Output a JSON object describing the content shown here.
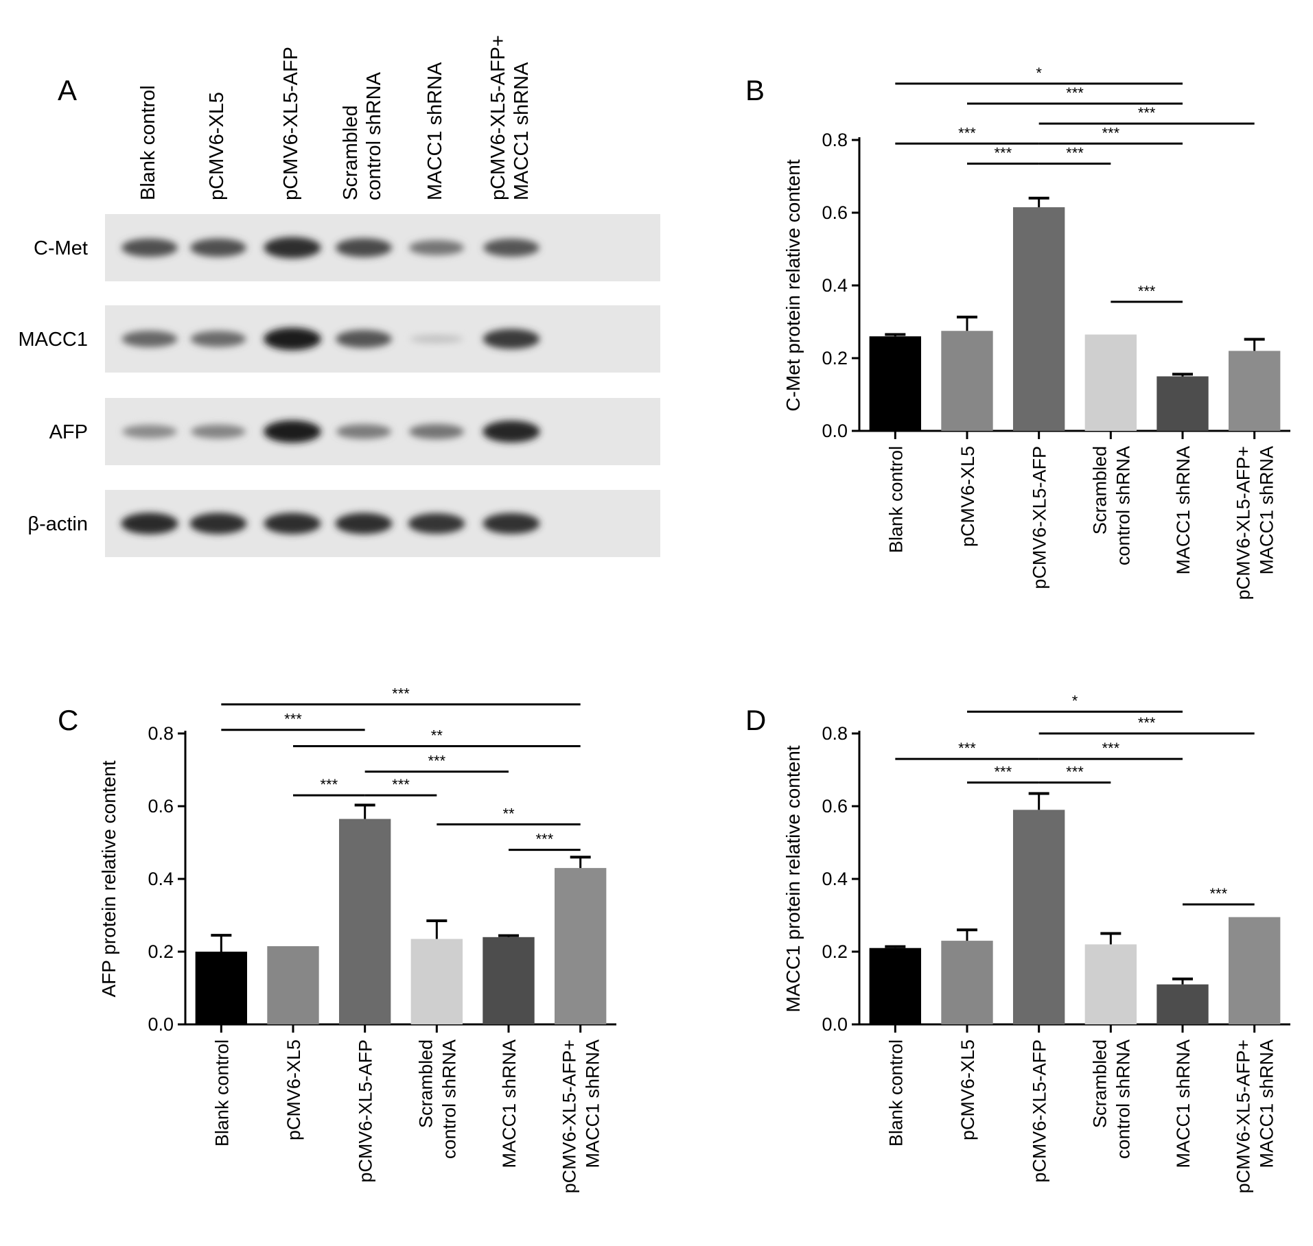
{
  "panels": {
    "A": {
      "letter": "A"
    },
    "B": {
      "letter": "B"
    },
    "C": {
      "letter": "C"
    },
    "D": {
      "letter": "D"
    }
  },
  "blot": {
    "conditions": [
      [
        "Blank control"
      ],
      [
        "pCMV6-XL5"
      ],
      [
        "pCMV6-XL5-AFP"
      ],
      [
        "Scrambled",
        "control shRNA"
      ],
      [
        "MACC1 shRNA"
      ],
      [
        "pCMV6-XL5-AFP+",
        "MACC1 shRNA"
      ]
    ],
    "proteins": [
      "C-Met",
      "MACC1",
      "AFP",
      "β-actin"
    ],
    "band_intensity": [
      [
        0.72,
        0.72,
        0.88,
        0.75,
        0.55,
        0.7
      ],
      [
        0.62,
        0.6,
        0.95,
        0.7,
        0.18,
        0.82
      ],
      [
        0.45,
        0.48,
        0.95,
        0.52,
        0.55,
        0.92
      ],
      [
        0.9,
        0.88,
        0.88,
        0.88,
        0.85,
        0.87
      ]
    ]
  },
  "chart_data": [
    {
      "panel": "B",
      "type": "bar",
      "title": "",
      "ylabel": "C-Met protein relative content",
      "xlabel": "",
      "ylim": [
        0,
        0.8
      ],
      "yticks": [
        "0.0",
        "0.2",
        "0.4",
        "0.6",
        "0.8"
      ],
      "categories": [
        [
          "Blank control"
        ],
        [
          "pCMV6-XL5"
        ],
        [
          "pCMV6-XL5-AFP"
        ],
        [
          "Scrambled",
          "control shRNA"
        ],
        [
          "MACC1 shRNA"
        ],
        [
          "pCMV6-XL5-AFP+",
          "MACC1 shRNA"
        ]
      ],
      "values": [
        0.26,
        0.275,
        0.615,
        0.265,
        0.15,
        0.22
      ],
      "errors": [
        0.005,
        0.038,
        0.025,
        0.0,
        0.006,
        0.032
      ],
      "bar_colors": [
        "#000000",
        "#878787",
        "#6b6b6b",
        "#cfcfcf",
        "#4d4d4d",
        "#8c8c8c"
      ],
      "significance": [
        {
          "from": 0,
          "to": 4,
          "y": 0.955,
          "label": "*"
        },
        {
          "from": 1,
          "to": 4,
          "y": 0.9,
          "label": "***"
        },
        {
          "from": 2,
          "to": 5,
          "y": 0.845,
          "label": "***"
        },
        {
          "from": 0,
          "to": 2,
          "y": 0.79,
          "label": "***"
        },
        {
          "from": 2,
          "to": 4,
          "y": 0.79,
          "label": "***"
        },
        {
          "from": 1,
          "to": 2,
          "y": 0.735,
          "label": "***"
        },
        {
          "from": 2,
          "to": 3,
          "y": 0.735,
          "label": "***"
        },
        {
          "from": 3,
          "to": 4,
          "y": 0.355,
          "label": "***"
        }
      ]
    },
    {
      "panel": "C",
      "type": "bar",
      "title": "",
      "ylabel": "AFP protein relative content",
      "xlabel": "",
      "ylim": [
        0,
        0.8
      ],
      "yticks": [
        "0.0",
        "0.2",
        "0.4",
        "0.6",
        "0.8"
      ],
      "categories": [
        [
          "Blank control"
        ],
        [
          "pCMV6-XL5"
        ],
        [
          "pCMV6-XL5-AFP"
        ],
        [
          "Scrambled",
          "control shRNA"
        ],
        [
          "MACC1 shRNA"
        ],
        [
          "pCMV6-XL5-AFP+",
          "MACC1 shRNA"
        ]
      ],
      "values": [
        0.2,
        0.215,
        0.565,
        0.235,
        0.24,
        0.43
      ],
      "errors": [
        0.045,
        0.0,
        0.038,
        0.05,
        0.004,
        0.03
      ],
      "bar_colors": [
        "#000000",
        "#878787",
        "#6b6b6b",
        "#cfcfcf",
        "#4d4d4d",
        "#8c8c8c"
      ],
      "significance": [
        {
          "from": 0,
          "to": 5,
          "y": 0.88,
          "label": "***"
        },
        {
          "from": 0,
          "to": 2,
          "y": 0.81,
          "label": "***"
        },
        {
          "from": 1,
          "to": 5,
          "y": 0.765,
          "label": "**"
        },
        {
          "from": 2,
          "to": 4,
          "y": 0.695,
          "label": "***"
        },
        {
          "from": 1,
          "to": 2,
          "y": 0.63,
          "label": "***"
        },
        {
          "from": 2,
          "to": 3,
          "y": 0.63,
          "label": "***"
        },
        {
          "from": 3,
          "to": 5,
          "y": 0.55,
          "label": "**"
        },
        {
          "from": 4,
          "to": 5,
          "y": 0.48,
          "label": "***"
        }
      ]
    },
    {
      "panel": "D",
      "type": "bar",
      "title": "",
      "ylabel": "MACC1 protein relative content",
      "xlabel": "",
      "ylim": [
        0,
        0.8
      ],
      "yticks": [
        "0.0",
        "0.2",
        "0.4",
        "0.6",
        "0.8"
      ],
      "categories": [
        [
          "Blank control"
        ],
        [
          "pCMV6-XL5"
        ],
        [
          "pCMV6-XL5-AFP"
        ],
        [
          "Scrambled",
          "control shRNA"
        ],
        [
          "MACC1 shRNA"
        ],
        [
          "pCMV6-XL5-AFP+",
          "MACC1 shRNA"
        ]
      ],
      "values": [
        0.21,
        0.23,
        0.59,
        0.22,
        0.11,
        0.295
      ],
      "errors": [
        0.004,
        0.03,
        0.045,
        0.03,
        0.015,
        0.0
      ],
      "bar_colors": [
        "#000000",
        "#878787",
        "#6b6b6b",
        "#cfcfcf",
        "#4d4d4d",
        "#8c8c8c"
      ],
      "significance": [
        {
          "from": 1,
          "to": 4,
          "y": 0.86,
          "label": "*"
        },
        {
          "from": 2,
          "to": 5,
          "y": 0.8,
          "label": "***"
        },
        {
          "from": 0,
          "to": 2,
          "y": 0.73,
          "label": "***"
        },
        {
          "from": 2,
          "to": 4,
          "y": 0.73,
          "label": "***"
        },
        {
          "from": 1,
          "to": 2,
          "y": 0.665,
          "label": "***"
        },
        {
          "from": 2,
          "to": 3,
          "y": 0.665,
          "label": "***"
        },
        {
          "from": 4,
          "to": 5,
          "y": 0.33,
          "label": "***"
        }
      ]
    }
  ]
}
